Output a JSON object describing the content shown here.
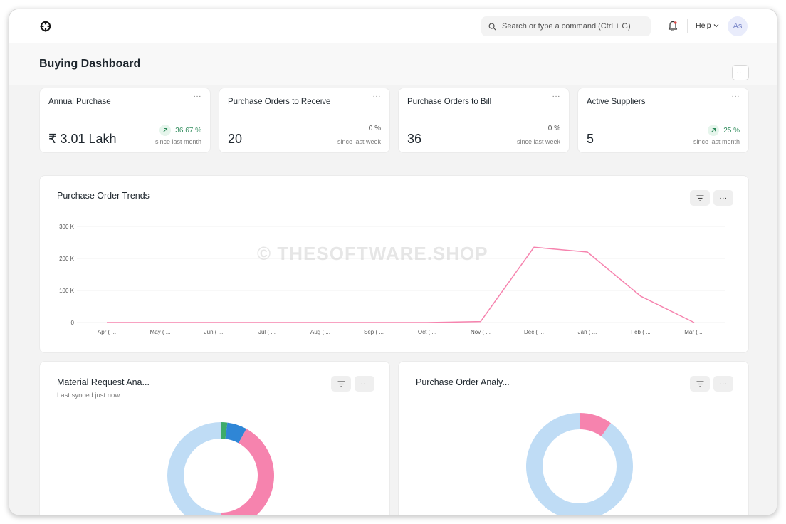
{
  "navbar": {
    "search_placeholder": "Search or type a command (Ctrl + G)",
    "help_label": "Help",
    "avatar_initials": "As"
  },
  "page": {
    "title": "Buying Dashboard",
    "menu_label": "···"
  },
  "number_cards": [
    {
      "label": "Annual Purchase",
      "value": "₹ 3.01 Lakh",
      "change": "36.67 %",
      "since": "since last month",
      "trend": "up"
    },
    {
      "label": "Purchase Orders to Receive",
      "value": "20",
      "change": "0 %",
      "since": "since last week",
      "trend": "flat"
    },
    {
      "label": "Purchase Orders to Bill",
      "value": "36",
      "change": "0 %",
      "since": "since last week",
      "trend": "flat"
    },
    {
      "label": "Active Suppliers",
      "value": "5",
      "change": "25 %",
      "since": "since last month",
      "trend": "up"
    }
  ],
  "card_menu_label": "···",
  "trends": {
    "title": "Purchase Order Trends"
  },
  "material_request": {
    "title": "Material Request Ana...",
    "subtitle": "Last synced just now"
  },
  "po_analysis": {
    "title": "Purchase Order Analy..."
  },
  "watermark": "© THESOFTWARE.SHOP",
  "colors": {
    "line": "#f683ae",
    "accent_green": "#2d8a5a",
    "donut_light": "#bfdcf5",
    "donut_pink": "#f683ae",
    "donut_blue": "#2f86d6",
    "donut_green": "#3dab6a"
  },
  "chart_data": [
    {
      "type": "line",
      "title": "Purchase Order Trends",
      "categories": [
        "Apr ( ...",
        "May ( ...",
        "Jun ( ...",
        "Jul ( ...",
        "Aug ( ...",
        "Sep ( ...",
        "Oct ( ...",
        "Nov ( ...",
        "Dec ( ...",
        "Jan ( ...",
        "Feb ( ...",
        "Mar ( ..."
      ],
      "values": [
        0,
        0,
        0,
        0,
        0,
        0,
        0,
        3000,
        235000,
        220000,
        82000,
        0
      ],
      "ylim": [
        0,
        300000
      ],
      "yticks": [
        {
          "value": 0,
          "label": "0"
        },
        {
          "value": 100000,
          "label": "100 K"
        },
        {
          "value": 200000,
          "label": "200 K"
        },
        {
          "value": 300000,
          "label": "300 K"
        }
      ],
      "grid": true
    },
    {
      "type": "pie",
      "title": "Material Request Ana...",
      "slices": [
        {
          "value": 2,
          "color": "#3dab6a"
        },
        {
          "value": 6,
          "color": "#2f86d6"
        },
        {
          "value": 42,
          "color": "#f683ae"
        },
        {
          "value": 50,
          "color": "#bfdcf5"
        }
      ]
    },
    {
      "type": "pie",
      "title": "Purchase Order Analy...",
      "slices": [
        {
          "value": 10,
          "color": "#f683ae"
        },
        {
          "value": 90,
          "color": "#bfdcf5"
        }
      ]
    }
  ]
}
